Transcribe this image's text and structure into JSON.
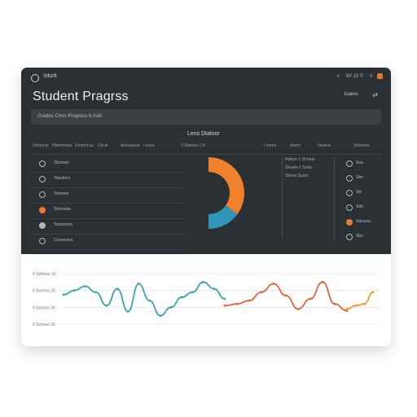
{
  "window": {
    "app_name": "Isturk",
    "top_right": [
      "·v·",
      "W/ 10 ©",
      "·ll"
    ]
  },
  "header": {
    "title": "Student Pragrss",
    "action_label": "lcaess",
    "action_icon": "sliders-icon"
  },
  "filterbar": {
    "text": "Grades Cmrs Progress  6 Asiir"
  },
  "panel": {
    "subtitle": "Lens Dtaloor",
    "columns": [
      "Unlunnis",
      "Hirimnstius",
      "Ummnl uu",
      "l 0ruh",
      "Asmasnna",
      "l ooeu",
      "0 Slomes 1 lh",
      "l rnoon",
      "Asmn",
      "Heurun",
      "Slorenns"
    ],
    "list_items": [
      {
        "label": "Stsmon",
        "icon": "circle-outline-icon"
      },
      {
        "label": "Stsninrs",
        "icon": "circle-outline-icon"
      },
      {
        "label": "Stsmns",
        "icon": "circle-outline-icon"
      },
      {
        "label": "Stsmnss",
        "icon": "orange-circle-icon"
      },
      {
        "label": "Stsmmns",
        "icon": "filled-circle-icon"
      },
      {
        "label": "Cosmons",
        "icon": "circle-outline-icon"
      }
    ],
    "center_labels": [
      "Huhun-1 Srmtus",
      "Shums-1 Sonu",
      "Sloreu Sums"
    ],
    "right_items": [
      {
        "label": "Sna",
        "icon": "circle-outline-icon"
      },
      {
        "label": "Sbn",
        "icon": "circle-outline-icon"
      },
      {
        "label": "Sln",
        "icon": "circle-outline-icon"
      },
      {
        "label": "Snb",
        "icon": "circle-outline-icon"
      },
      {
        "label": "Sloraros",
        "icon": "orange-circle-icon"
      },
      {
        "label": "Sko",
        "icon": "circle-outline-icon"
      }
    ],
    "donut": {
      "segments": [
        {
          "name": "orange",
          "value": 70,
          "color": "#f0802a"
        },
        {
          "name": "teal",
          "value": 30,
          "color": "#2e94b8"
        }
      ]
    }
  },
  "chart_data": {
    "type": "line",
    "ylabels": [
      "0 Srttmes 10",
      "0 Sosnes 20",
      "0 Sosnes 30",
      "0 Scnnes 35"
    ],
    "series": [
      {
        "color": "#3aa5b0",
        "values": [
          55,
          60,
          65,
          58,
          42,
          62,
          35,
          68,
          48,
          30,
          40,
          52,
          58,
          70,
          62,
          50
        ]
      },
      {
        "color": "#e2633a",
        "values": [
          42,
          44,
          48,
          58,
          68,
          54,
          38,
          50,
          70,
          44,
          36
        ]
      },
      {
        "color": "#f29a2a",
        "values": [
          38,
          42,
          44,
          58
        ]
      }
    ]
  }
}
